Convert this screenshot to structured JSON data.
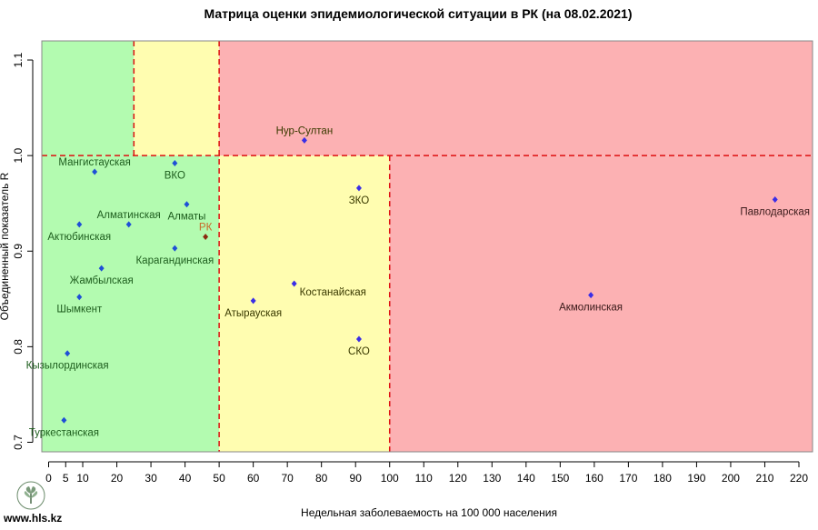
{
  "site_url": "www.hls.kz",
  "chart_data": {
    "type": "scatter",
    "title": "Матрица оценки эпидемиологической ситуации в РК (на 08.02.2021)",
    "xlabel": "Недельная заболеваемость на 100 000 населения",
    "ylabel": "Объединенный показатель R",
    "xlim": [
      -2,
      224
    ],
    "ylim": [
      0.69,
      1.12
    ],
    "x_ticks": [
      0,
      5,
      10,
      20,
      30,
      40,
      50,
      60,
      70,
      80,
      90,
      100,
      110,
      120,
      130,
      140,
      150,
      160,
      170,
      180,
      190,
      200,
      210,
      220
    ],
    "y_ticks": [
      0.7,
      0.8,
      0.9,
      1.0,
      1.1
    ],
    "y_tick_labels": [
      "0.7",
      "0.8",
      "0.9",
      "1.0",
      "1.1"
    ],
    "zones": [
      {
        "x": [
          -2,
          50
        ],
        "y": [
          0.69,
          1.0
        ],
        "color": "#b3fbb0"
      },
      {
        "x": [
          -2,
          25
        ],
        "y": [
          1.0,
          1.12
        ],
        "color": "#b3fbb0"
      },
      {
        "x": [
          25,
          50
        ],
        "y": [
          1.0,
          1.12
        ],
        "color": "#fffdb0"
      },
      {
        "x": [
          50,
          100
        ],
        "y": [
          0.69,
          1.0
        ],
        "color": "#fffdb0"
      },
      {
        "x": [
          50,
          224
        ],
        "y": [
          1.0,
          1.12
        ],
        "color": "#fcb1b3"
      },
      {
        "x": [
          100,
          224
        ],
        "y": [
          0.69,
          1.0
        ],
        "color": "#fcb1b3"
      }
    ],
    "threshold_lines_color": "#dd1111",
    "points": [
      {
        "name": "Нур-Султан",
        "x": 75,
        "y": 1.016,
        "color": "#3a2ee6",
        "label_color": "#3a3a00",
        "label_pos": "above"
      },
      {
        "name": "Мангистауская",
        "x": 13.5,
        "y": 0.983,
        "color": "#1f4fd6",
        "label_color": "#1e5e1e",
        "label_pos": "above"
      },
      {
        "name": "ВКО",
        "x": 37,
        "y": 0.992,
        "color": "#1f4fd6",
        "label_color": "#1e5e1e",
        "label_pos": "below"
      },
      {
        "name": "ЗКО",
        "x": 91,
        "y": 0.966,
        "color": "#3a2ee6",
        "label_color": "#3a3a00",
        "label_pos": "below"
      },
      {
        "name": "Павлодарская",
        "x": 213,
        "y": 0.954,
        "color": "#3a2ee6",
        "label_color": "#3a1a1a",
        "label_pos": "below"
      },
      {
        "name": "Алматы",
        "x": 40.5,
        "y": 0.949,
        "color": "#1f4fd6",
        "label_color": "#1e5e1e",
        "label_pos": "below"
      },
      {
        "name": "Алматинская",
        "x": 23.5,
        "y": 0.928,
        "color": "#1f4fd6",
        "label_color": "#1e5e1e",
        "label_pos": "above"
      },
      {
        "name": "Актюбинская",
        "x": 9,
        "y": 0.928,
        "color": "#1f4fd6",
        "label_color": "#1e5e1e",
        "label_pos": "below"
      },
      {
        "name": "РК",
        "x": 46,
        "y": 0.915,
        "color": "#8b2a10",
        "label_color": "#c96a2a",
        "label_pos": "above"
      },
      {
        "name": "Карагандинская",
        "x": 37,
        "y": 0.903,
        "color": "#1f4fd6",
        "label_color": "#1e5e1e",
        "label_pos": "below"
      },
      {
        "name": "Жамбылская",
        "x": 15.5,
        "y": 0.882,
        "color": "#1f4fd6",
        "label_color": "#1e5e1e",
        "label_pos": "below"
      },
      {
        "name": "Костанайская",
        "x": 72,
        "y": 0.866,
        "color": "#3a2ee6",
        "label_color": "#3a3a00",
        "label_pos": "right"
      },
      {
        "name": "Атырауская",
        "x": 60,
        "y": 0.848,
        "color": "#3a2ee6",
        "label_color": "#3a3a00",
        "label_pos": "below"
      },
      {
        "name": "Акмолинская",
        "x": 159,
        "y": 0.854,
        "color": "#3a2ee6",
        "label_color": "#3a1a1a",
        "label_pos": "below"
      },
      {
        "name": "Шымкент",
        "x": 9,
        "y": 0.852,
        "color": "#1f4fd6",
        "label_color": "#1e5e1e",
        "label_pos": "below"
      },
      {
        "name": "СКО",
        "x": 91,
        "y": 0.808,
        "color": "#3a2ee6",
        "label_color": "#3a3a00",
        "label_pos": "below"
      },
      {
        "name": "Кызылординская",
        "x": 5.5,
        "y": 0.793,
        "color": "#1f4fd6",
        "label_color": "#1e5e1e",
        "label_pos": "below"
      },
      {
        "name": "Туркестанская",
        "x": 4.5,
        "y": 0.723,
        "color": "#1f4fd6",
        "label_color": "#1e5e1e",
        "label_pos": "below"
      }
    ]
  }
}
